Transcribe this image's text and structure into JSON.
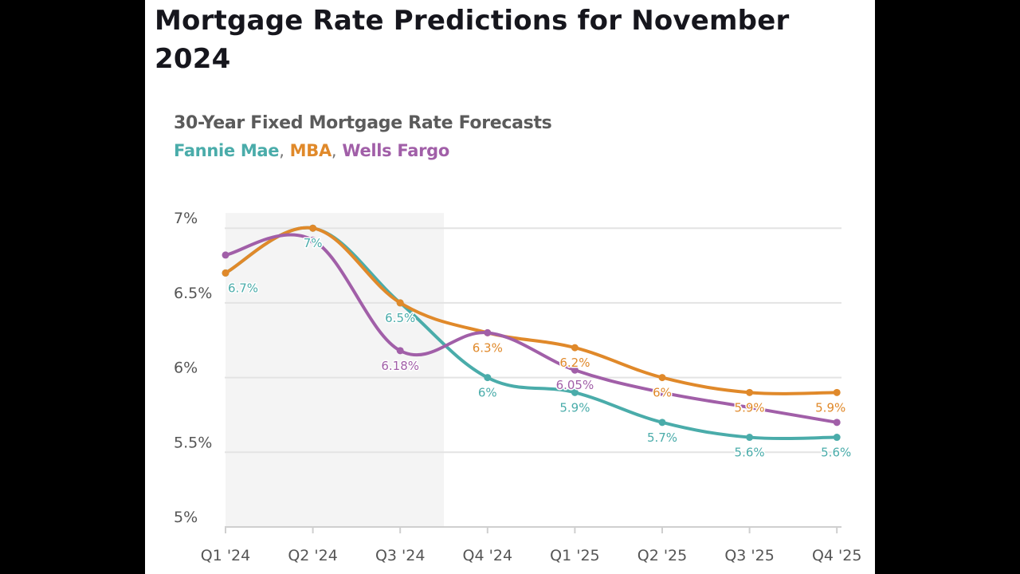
{
  "page": {
    "title": "Mortgage Rate Predictions for November 2024"
  },
  "colors": {
    "fannie_mae": "#4aacaa",
    "mba": "#e0892a",
    "wells_fargo": "#a15fa8",
    "grid": "#e3e3e3",
    "shade": "#f4f4f4"
  },
  "chart_data": {
    "type": "line",
    "title": "30-Year Fixed Mortgage Rate Forecasts",
    "subtitle_sep": ",",
    "categories": [
      "Q1 '24",
      "Q2 '24",
      "Q3 '24",
      "Q4 '24",
      "Q1 '25",
      "Q2 '25",
      "Q3 '25",
      "Q4 '25"
    ],
    "y_ticks": [
      5,
      5.5,
      6,
      6.5,
      7
    ],
    "y_tick_labels": [
      "5%",
      "5.5%",
      "6%",
      "6.5%",
      "7%"
    ],
    "ylim": [
      5,
      7.08
    ],
    "shaded_range": [
      "Q1 '24",
      "Q3 '24 (mid)"
    ],
    "grid": true,
    "series": [
      {
        "key": "fannie_mae",
        "name": "Fannie Mae",
        "values": [
          6.7,
          7.0,
          6.5,
          6.0,
          5.9,
          5.7,
          5.6,
          5.6
        ],
        "labels": [
          "6.7%",
          "7%",
          "6.5%",
          "6%",
          "5.9%",
          "5.7%",
          "5.6%",
          "5.6%"
        ]
      },
      {
        "key": "mba",
        "name": "MBA",
        "values": [
          6.7,
          7.0,
          6.5,
          6.3,
          6.2,
          6.0,
          5.9,
          5.9
        ],
        "labels": [
          "",
          "",
          "",
          "6.3%",
          "6.2%",
          "6%",
          "5.9%",
          "5.9%"
        ]
      },
      {
        "key": "wells_fargo",
        "name": "Wells Fargo",
        "values": [
          6.82,
          6.92,
          6.18,
          6.3,
          6.05,
          5.9,
          5.8,
          5.7
        ],
        "labels": [
          "",
          "",
          "6.18%",
          "",
          "6.05%",
          "",
          "",
          ""
        ]
      }
    ]
  }
}
